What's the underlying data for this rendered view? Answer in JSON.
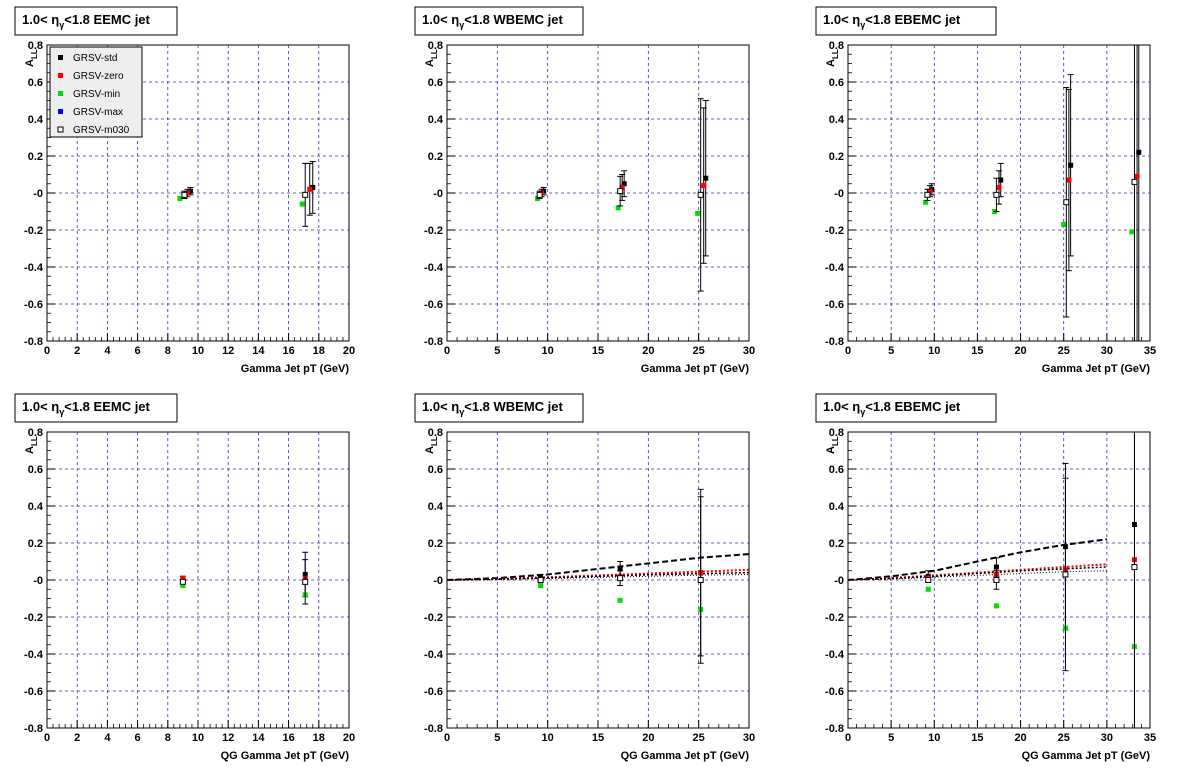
{
  "chart_data": [
    {
      "type": "scatter",
      "title": {
        "prefix": "1.0< ",
        "eta": "η",
        "sub": "γ",
        "suffix": "<1.8 EEMC jet"
      },
      "xlabel": "Gamma Jet pT (GeV)",
      "ylabel": "A",
      "ylabel_sub": "LL",
      "xlim": [
        0,
        20
      ],
      "ylim": [
        -0.8,
        0.8
      ],
      "xticks": [
        0,
        2,
        4,
        6,
        8,
        10,
        12,
        14,
        16,
        18,
        20
      ],
      "yticks": [
        -0.8,
        -0.6,
        -0.4,
        -0.2,
        0,
        0.2,
        0.4,
        0.6,
        0.8
      ],
      "ytick_labels": [
        "-0.8",
        "-0.6",
        "-0.4",
        "-0.2",
        "-0",
        "0.2",
        "0.4",
        "0.6",
        "0.8"
      ],
      "grid": true,
      "legend_position": "top-left",
      "series": [
        {
          "name": "GRSV-std",
          "color": "#000000",
          "marker": "filled",
          "points": [
            {
              "x": 9.5,
              "y": 0.01,
              "err": 0.02
            },
            {
              "x": 17.6,
              "y": 0.03,
              "err": 0.14
            }
          ]
        },
        {
          "name": "GRSV-zero",
          "color": "#ff0000",
          "marker": "filled",
          "points": [
            {
              "x": 9.3,
              "y": 0.0,
              "err": 0.02
            },
            {
              "x": 17.4,
              "y": 0.02,
              "err": 0.14
            }
          ]
        },
        {
          "name": "GRSV-min",
          "color": "#00dd00",
          "marker": "filled",
          "points": [
            {
              "x": 8.8,
              "y": -0.03
            },
            {
              "x": 16.9,
              "y": -0.06
            }
          ]
        },
        {
          "name": "GRSV-max",
          "color": "#0000ff",
          "marker": "filled",
          "points": []
        },
        {
          "name": "GRSV-m030",
          "color": "#000000",
          "marker": "open",
          "points": [
            {
              "x": 9.1,
              "y": -0.01,
              "err": 0.02
            },
            {
              "x": 17.1,
              "y": -0.01,
              "err": 0.17
            }
          ]
        }
      ]
    },
    {
      "type": "scatter",
      "title": {
        "prefix": "1.0< ",
        "eta": "η",
        "sub": "γ",
        "suffix": "<1.8 WBEMC jet"
      },
      "xlabel": "Gamma Jet pT (GeV)",
      "ylabel": "A",
      "ylabel_sub": "LL",
      "xlim": [
        0,
        30
      ],
      "ylim": [
        -0.8,
        0.8
      ],
      "xticks": [
        0,
        5,
        10,
        15,
        20,
        25,
        30
      ],
      "yticks": [
        -0.8,
        -0.6,
        -0.4,
        -0.2,
        0,
        0.2,
        0.4,
        0.6,
        0.8
      ],
      "ytick_labels": [
        "-0.8",
        "-0.6",
        "-0.4",
        "-0.2",
        "-0",
        "0.2",
        "0.4",
        "0.6",
        "0.8"
      ],
      "grid": true,
      "series": [
        {
          "name": "GRSV-std",
          "color": "#000000",
          "marker": "filled",
          "points": [
            {
              "x": 9.6,
              "y": 0.01,
              "err": 0.02
            },
            {
              "x": 17.6,
              "y": 0.05,
              "err": 0.07
            },
            {
              "x": 25.7,
              "y": 0.08,
              "err": 0.42
            }
          ]
        },
        {
          "name": "GRSV-zero",
          "color": "#ff0000",
          "marker": "filled",
          "points": [
            {
              "x": 9.4,
              "y": 0.0,
              "err": 0.02
            },
            {
              "x": 17.4,
              "y": 0.03,
              "err": 0.07
            },
            {
              "x": 25.5,
              "y": 0.04,
              "err": 0.42
            }
          ]
        },
        {
          "name": "GRSV-min",
          "color": "#00dd00",
          "marker": "filled",
          "points": [
            {
              "x": 9.0,
              "y": -0.03
            },
            {
              "x": 17.0,
              "y": -0.08
            },
            {
              "x": 24.9,
              "y": -0.11
            }
          ]
        },
        {
          "name": "GRSV-m030",
          "color": "#000000",
          "marker": "open",
          "points": [
            {
              "x": 9.2,
              "y": -0.01,
              "err": 0.02
            },
            {
              "x": 17.2,
              "y": 0.01,
              "err": 0.08
            },
            {
              "x": 25.2,
              "y": -0.01,
              "err": 0.52
            }
          ]
        }
      ]
    },
    {
      "type": "scatter",
      "title": {
        "prefix": "1.0< ",
        "eta": "η",
        "sub": "γ",
        "suffix": "<1.8 EBEMC jet"
      },
      "xlabel": "Gamma Jet pT (GeV)",
      "ylabel": "A",
      "ylabel_sub": "LL",
      "xlim": [
        0,
        35
      ],
      "ylim": [
        -0.8,
        0.8
      ],
      "xticks": [
        0,
        5,
        10,
        15,
        20,
        25,
        30,
        35
      ],
      "yticks": [
        -0.8,
        -0.6,
        -0.4,
        -0.2,
        0,
        0.2,
        0.4,
        0.6,
        0.8
      ],
      "ytick_labels": [
        "-0.8",
        "-0.6",
        "-0.4",
        "-0.2",
        "-0",
        "0.2",
        "0.4",
        "0.6",
        "0.8"
      ],
      "grid": true,
      "series": [
        {
          "name": "GRSV-std",
          "color": "#000000",
          "marker": "filled",
          "points": [
            {
              "x": 9.7,
              "y": 0.02,
              "err": 0.03
            },
            {
              "x": 17.7,
              "y": 0.07,
              "err": 0.09
            },
            {
              "x": 25.8,
              "y": 0.15,
              "err": 0.49
            },
            {
              "x": 33.7,
              "y": 0.22,
              "err": 1.4
            }
          ]
        },
        {
          "name": "GRSV-zero",
          "color": "#ff0000",
          "marker": "filled",
          "points": [
            {
              "x": 9.5,
              "y": 0.01,
              "err": 0.03
            },
            {
              "x": 17.5,
              "y": 0.03,
              "err": 0.09
            },
            {
              "x": 25.6,
              "y": 0.07,
              "err": 0.49
            },
            {
              "x": 33.5,
              "y": 0.09,
              "err": 1.4
            }
          ]
        },
        {
          "name": "GRSV-min",
          "color": "#00dd00",
          "marker": "filled",
          "points": [
            {
              "x": 9.0,
              "y": -0.05
            },
            {
              "x": 17.0,
              "y": -0.1
            },
            {
              "x": 25.0,
              "y": -0.17
            },
            {
              "x": 32.9,
              "y": -0.21
            }
          ]
        },
        {
          "name": "GRSV-m030",
          "color": "#000000",
          "marker": "open",
          "points": [
            {
              "x": 9.2,
              "y": -0.01,
              "err": 0.03
            },
            {
              "x": 17.2,
              "y": -0.01,
              "err": 0.09
            },
            {
              "x": 25.3,
              "y": -0.05,
              "err": 0.62
            },
            {
              "x": 33.2,
              "y": 0.06,
              "err": 1.4
            }
          ]
        }
      ]
    },
    {
      "type": "scatter",
      "title": {
        "prefix": "1.0< ",
        "eta": "η",
        "sub": "γ",
        "suffix": "<1.8 EEMC jet"
      },
      "xlabel": "QG Gamma Jet pT (GeV)",
      "ylabel": "A",
      "ylabel_sub": "LL",
      "xlim": [
        0,
        20
      ],
      "ylim": [
        -0.8,
        0.8
      ],
      "xticks": [
        0,
        2,
        4,
        6,
        8,
        10,
        12,
        14,
        16,
        18,
        20
      ],
      "yticks": [
        -0.8,
        -0.6,
        -0.4,
        -0.2,
        0,
        0.2,
        0.4,
        0.6,
        0.8
      ],
      "ytick_labels": [
        "-0.8",
        "-0.6",
        "-0.4",
        "-0.2",
        "-0",
        "0.2",
        "0.4",
        "0.6",
        "0.8"
      ],
      "grid": true,
      "series": [
        {
          "name": "GRSV-std",
          "color": "#000000",
          "marker": "filled",
          "points": [
            {
              "x": 9.0,
              "y": 0.0,
              "err": 0.02
            },
            {
              "x": 17.1,
              "y": 0.03,
              "err": 0.12
            }
          ]
        },
        {
          "name": "GRSV-zero",
          "color": "#ff0000",
          "marker": "filled",
          "points": [
            {
              "x": 9.0,
              "y": 0.01
            },
            {
              "x": 17.1,
              "y": 0.01
            }
          ]
        },
        {
          "name": "GRSV-min",
          "color": "#00dd00",
          "marker": "filled",
          "points": [
            {
              "x": 9.0,
              "y": -0.03
            },
            {
              "x": 17.1,
              "y": -0.08
            }
          ]
        },
        {
          "name": "GRSV-m030",
          "color": "#000000",
          "marker": "open",
          "points": [
            {
              "x": 9.0,
              "y": -0.01
            },
            {
              "x": 17.1,
              "y": -0.01,
              "err": 0.12
            }
          ]
        }
      ]
    },
    {
      "type": "scatter",
      "title": {
        "prefix": "1.0< ",
        "eta": "η",
        "sub": "γ",
        "suffix": "<1.8 WBEMC jet"
      },
      "xlabel": "QG Gamma Jet pT (GeV)",
      "ylabel": "A",
      "ylabel_sub": "LL",
      "xlim": [
        0,
        30
      ],
      "ylim": [
        -0.8,
        0.8
      ],
      "xticks": [
        0,
        5,
        10,
        15,
        20,
        25,
        30
      ],
      "yticks": [
        -0.8,
        -0.6,
        -0.4,
        -0.2,
        0,
        0.2,
        0.4,
        0.6,
        0.8
      ],
      "ytick_labels": [
        "-0.8",
        "-0.6",
        "-0.4",
        "-0.2",
        "-0",
        "0.2",
        "0.4",
        "0.6",
        "0.8"
      ],
      "grid": true,
      "curves": [
        {
          "color": "#000000",
          "dash": "6,3",
          "width": 2,
          "x": [
            0,
            5,
            10,
            15,
            20,
            25,
            30
          ],
          "y": [
            0.0,
            0.01,
            0.03,
            0.06,
            0.09,
            0.12,
            0.14
          ]
        },
        {
          "color": "#ff0000",
          "dash": "2,2",
          "width": 2,
          "x": [
            0,
            5,
            10,
            15,
            20,
            25,
            30
          ],
          "y": [
            0.0,
            0.005,
            0.015,
            0.025,
            0.035,
            0.045,
            0.055
          ]
        },
        {
          "color": "#000000",
          "dash": "2,2",
          "width": 1.5,
          "x": [
            0,
            5,
            10,
            15,
            20,
            25,
            30
          ],
          "y": [
            0.0,
            0.004,
            0.012,
            0.02,
            0.028,
            0.034,
            0.04
          ]
        },
        {
          "color": "#000000",
          "dash": "1,2",
          "width": 1,
          "x": [
            0,
            5,
            10,
            15,
            20,
            25,
            30
          ],
          "y": [
            0.0,
            0.003,
            0.008,
            0.014,
            0.02,
            0.026,
            0.03
          ]
        }
      ],
      "series": [
        {
          "name": "GRSV-std",
          "color": "#000000",
          "marker": "filled",
          "points": [
            {
              "x": 9.3,
              "y": 0.01,
              "err": 0.02
            },
            {
              "x": 17.2,
              "y": 0.06,
              "err": 0.04
            },
            {
              "x": 25.2,
              "y": 0.04,
              "err": 0.45
            }
          ]
        },
        {
          "name": "GRSV-zero",
          "color": "#ff0000",
          "marker": "filled",
          "points": [
            {
              "x": 9.3,
              "y": 0.0
            },
            {
              "x": 17.2,
              "y": 0.02
            },
            {
              "x": 25.2,
              "y": 0.04
            }
          ]
        },
        {
          "name": "GRSV-min",
          "color": "#00dd00",
          "marker": "filled",
          "points": [
            {
              "x": 9.3,
              "y": -0.03
            },
            {
              "x": 17.2,
              "y": -0.11
            },
            {
              "x": 25.2,
              "y": -0.16
            }
          ]
        },
        {
          "name": "GRSV-m030",
          "color": "#000000",
          "marker": "open",
          "points": [
            {
              "x": 9.3,
              "y": 0.0
            },
            {
              "x": 17.2,
              "y": 0.01,
              "err": 0.04
            },
            {
              "x": 25.2,
              "y": 0.0,
              "err": 0.45
            }
          ]
        }
      ]
    },
    {
      "type": "scatter",
      "title": {
        "prefix": "1.0< ",
        "eta": "η",
        "sub": "γ",
        "suffix": "<1.8 EBEMC jet"
      },
      "xlabel": "QG Gamma Jet pT (GeV)",
      "ylabel": "A",
      "ylabel_sub": "LL",
      "xlim": [
        0,
        35
      ],
      "ylim": [
        -0.8,
        0.8
      ],
      "xticks": [
        0,
        5,
        10,
        15,
        20,
        25,
        30,
        35
      ],
      "yticks": [
        -0.8,
        -0.6,
        -0.4,
        -0.2,
        0,
        0.2,
        0.4,
        0.6,
        0.8
      ],
      "ytick_labels": [
        "-0.8",
        "-0.6",
        "-0.4",
        "-0.2",
        "-0",
        "0.2",
        "0.4",
        "0.6",
        "0.8"
      ],
      "grid": true,
      "curves": [
        {
          "color": "#000000",
          "dash": "6,3",
          "width": 2,
          "x": [
            0,
            5,
            10,
            15,
            20,
            25,
            30
          ],
          "y": [
            0.0,
            0.02,
            0.05,
            0.1,
            0.15,
            0.19,
            0.22
          ]
        },
        {
          "color": "#ff0000",
          "dash": "2,2",
          "width": 2,
          "x": [
            0,
            5,
            10,
            15,
            20,
            25,
            30
          ],
          "y": [
            0.0,
            0.01,
            0.025,
            0.04,
            0.055,
            0.07,
            0.085
          ]
        },
        {
          "color": "#000000",
          "dash": "2,2",
          "width": 1.5,
          "x": [
            0,
            5,
            10,
            15,
            20,
            25,
            30
          ],
          "y": [
            0.0,
            0.008,
            0.02,
            0.035,
            0.05,
            0.06,
            0.07
          ]
        },
        {
          "color": "#000000",
          "dash": "1,2",
          "width": 1,
          "x": [
            0,
            5,
            10,
            15,
            20,
            25,
            30
          ],
          "y": [
            0.0,
            0.005,
            0.015,
            0.025,
            0.035,
            0.045,
            0.05
          ]
        }
      ],
      "series": [
        {
          "name": "GRSV-std",
          "color": "#000000",
          "marker": "filled",
          "points": [
            {
              "x": 9.3,
              "y": 0.02,
              "err": 0.03
            },
            {
              "x": 17.2,
              "y": 0.07,
              "err": 0.05
            },
            {
              "x": 25.2,
              "y": 0.18,
              "err": 0.45
            },
            {
              "x": 33.2,
              "y": 0.3,
              "err": 1.3
            }
          ]
        },
        {
          "name": "GRSV-zero",
          "color": "#ff0000",
          "marker": "filled",
          "points": [
            {
              "x": 9.3,
              "y": 0.01
            },
            {
              "x": 17.2,
              "y": 0.03
            },
            {
              "x": 25.2,
              "y": 0.06
            },
            {
              "x": 33.2,
              "y": 0.11
            }
          ]
        },
        {
          "name": "GRSV-min",
          "color": "#00dd00",
          "marker": "filled",
          "points": [
            {
              "x": 9.3,
              "y": -0.05
            },
            {
              "x": 17.2,
              "y": -0.14
            },
            {
              "x": 25.2,
              "y": -0.26
            },
            {
              "x": 33.2,
              "y": -0.36
            }
          ]
        },
        {
          "name": "GRSV-m030",
          "color": "#000000",
          "marker": "open",
          "points": [
            {
              "x": 9.3,
              "y": 0.0
            },
            {
              "x": 17.2,
              "y": 0.0,
              "err": 0.05
            },
            {
              "x": 25.2,
              "y": 0.03,
              "err": 0.52
            },
            {
              "x": 33.2,
              "y": 0.07,
              "err": 1.3
            }
          ]
        }
      ]
    }
  ]
}
